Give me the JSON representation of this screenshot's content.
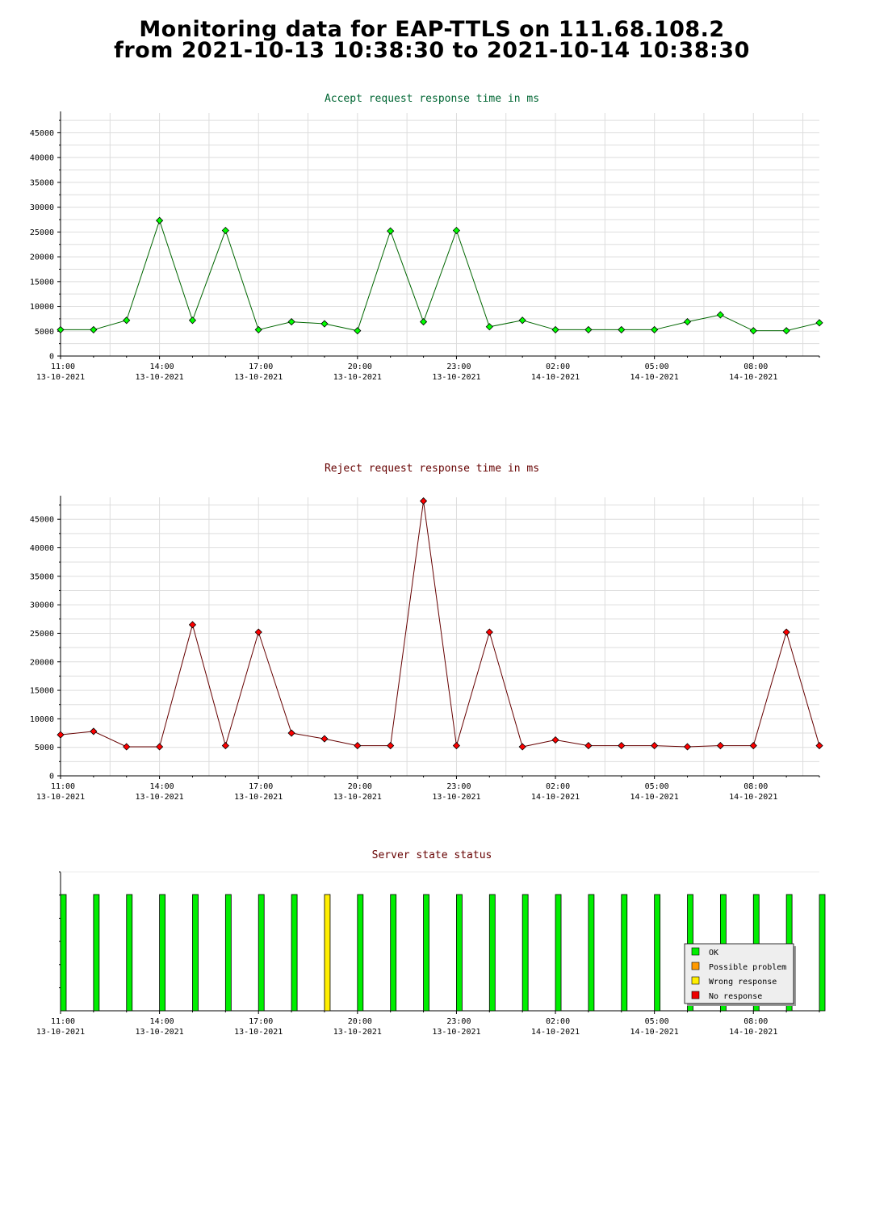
{
  "header": {
    "title_line1": "Monitoring data for EAP-TTLS on 111.68.108.2",
    "title_line2": "from 2021-10-13 10:38:30 to 2021-10-14 10:38:30"
  },
  "colors": {
    "accept_title": "#006633",
    "reject_title": "#660000",
    "state_title": "#660000",
    "accept_line": "#006600",
    "accept_marker": "#00ff00",
    "reject_line": "#660000",
    "reject_marker": "#ff0000",
    "grid": "#dddddd",
    "ok": "#00ee00",
    "possible_problem": "#ff9900",
    "wrong_response": "#ffee00",
    "no_response": "#ee0000"
  },
  "x_ticks": [
    {
      "time": "11:00",
      "date": "13-10-2021"
    },
    {
      "time": "14:00",
      "date": "13-10-2021"
    },
    {
      "time": "17:00",
      "date": "13-10-2021"
    },
    {
      "time": "20:00",
      "date": "13-10-2021"
    },
    {
      "time": "23:00",
      "date": "13-10-2021"
    },
    {
      "time": "02:00",
      "date": "14-10-2021"
    },
    {
      "time": "05:00",
      "date": "14-10-2021"
    },
    {
      "time": "08:00",
      "date": "14-10-2021"
    }
  ],
  "chart_data": [
    {
      "type": "line",
      "title": "Accept request response time in ms",
      "ylim": [
        0,
        48000
      ],
      "y_ticks": [
        0,
        5000,
        10000,
        15000,
        20000,
        25000,
        30000,
        35000,
        40000,
        45000
      ],
      "grid": true,
      "x_start": "2021-10-13 11:00",
      "x_end": "2021-10-14 10:00",
      "x": [
        "2021-10-13 11:00",
        "2021-10-13 12:00",
        "2021-10-13 13:00",
        "2021-10-13 14:00",
        "2021-10-13 15:00",
        "2021-10-13 16:00",
        "2021-10-13 17:00",
        "2021-10-13 18:00",
        "2021-10-13 19:00",
        "2021-10-13 20:00",
        "2021-10-13 21:00",
        "2021-10-13 22:00",
        "2021-10-13 23:00",
        "2021-10-14 00:00",
        "2021-10-14 01:00",
        "2021-10-14 02:00",
        "2021-10-14 03:00",
        "2021-10-14 04:00",
        "2021-10-14 05:00",
        "2021-10-14 06:00",
        "2021-10-14 07:00",
        "2021-10-14 08:00",
        "2021-10-14 09:00",
        "2021-10-14 10:00"
      ],
      "values": [
        5300,
        5300,
        7200,
        27300,
        7200,
        25300,
        5300,
        6900,
        6500,
        5100,
        25200,
        6900,
        25300,
        5900,
        7200,
        5300,
        5300,
        5300,
        5300,
        6900,
        8300,
        5100,
        5100,
        6700
      ]
    },
    {
      "type": "line",
      "title": "Reject request response time in ms",
      "ylim": [
        0,
        48000
      ],
      "y_ticks": [
        0,
        5000,
        10000,
        15000,
        20000,
        25000,
        30000,
        35000,
        40000,
        45000
      ],
      "grid": true,
      "x_start": "2021-10-13 11:00",
      "x_end": "2021-10-14 10:00",
      "x": [
        "2021-10-13 11:00",
        "2021-10-13 12:00",
        "2021-10-13 13:00",
        "2021-10-13 14:00",
        "2021-10-13 15:00",
        "2021-10-13 16:00",
        "2021-10-13 17:00",
        "2021-10-13 18:00",
        "2021-10-13 19:00",
        "2021-10-13 20:00",
        "2021-10-13 21:00",
        "2021-10-13 22:00",
        "2021-10-13 23:00",
        "2021-10-14 00:00",
        "2021-10-14 01:00",
        "2021-10-14 02:00",
        "2021-10-14 03:00",
        "2021-10-14 04:00",
        "2021-10-14 05:00",
        "2021-10-14 06:00",
        "2021-10-14 07:00",
        "2021-10-14 08:00",
        "2021-10-14 09:00",
        "2021-10-14 10:00"
      ],
      "values": [
        7200,
        7800,
        5100,
        5100,
        26500,
        5300,
        25200,
        7500,
        6500,
        5300,
        5300,
        48200,
        5300,
        25200,
        5100,
        6300,
        5300,
        5300,
        5300,
        5100,
        5300,
        5300,
        25200,
        5300
      ]
    },
    {
      "type": "bar",
      "title": "Server state status",
      "x_start": "2021-10-13 11:00",
      "x_end": "2021-10-14 10:00",
      "x": [
        "2021-10-13 11:00",
        "2021-10-13 12:00",
        "2021-10-13 13:00",
        "2021-10-13 14:00",
        "2021-10-13 15:00",
        "2021-10-13 16:00",
        "2021-10-13 17:00",
        "2021-10-13 18:00",
        "2021-10-13 19:00",
        "2021-10-13 20:00",
        "2021-10-13 21:00",
        "2021-10-13 22:00",
        "2021-10-13 23:00",
        "2021-10-14 00:00",
        "2021-10-14 01:00",
        "2021-10-14 02:00",
        "2021-10-14 03:00",
        "2021-10-14 04:00",
        "2021-10-14 05:00",
        "2021-10-14 06:00",
        "2021-10-14 07:00",
        "2021-10-14 08:00",
        "2021-10-14 09:00",
        "2021-10-14 10:00"
      ],
      "states": [
        "OK",
        "OK",
        "OK",
        "OK",
        "OK",
        "OK",
        "OK",
        "OK",
        "Wrong response",
        "OK",
        "OK",
        "OK",
        "OK",
        "OK",
        "OK",
        "OK",
        "OK",
        "OK",
        "OK",
        "OK",
        "OK",
        "OK",
        "OK",
        "OK"
      ],
      "legend": [
        {
          "label": "OK",
          "color": "#00ee00"
        },
        {
          "label": "Possible problem",
          "color": "#ff9900"
        },
        {
          "label": "Wrong response",
          "color": "#ffee00"
        },
        {
          "label": "No response",
          "color": "#ee0000"
        }
      ],
      "legend_position": "bottom-right"
    }
  ]
}
